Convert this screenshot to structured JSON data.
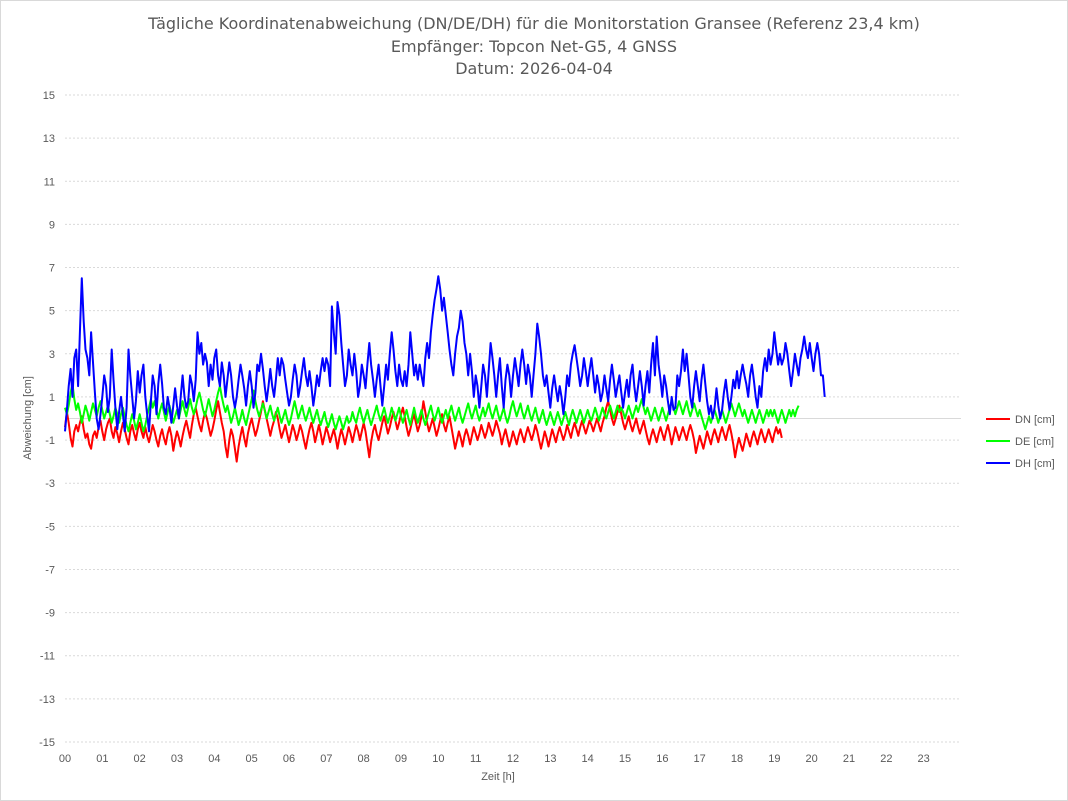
{
  "chart_data": {
    "type": "line",
    "title": [
      "Tägliche Koordinatenabweichung (DN/DE/DH) für die Monitorstation Gransee (Referenz 23,4 km)",
      "Empfänger: Topcon Net-G5, 4 GNSS",
      "Datum: 2026-04-04"
    ],
    "xlabel": "Zeit [h]",
    "ylabel": "Abweichung [cm]",
    "xlim": [
      0,
      24
    ],
    "ylim": [
      -15,
      15
    ],
    "x_ticks": [
      "00",
      "01",
      "02",
      "03",
      "04",
      "05",
      "06",
      "07",
      "08",
      "09",
      "10",
      "11",
      "12",
      "13",
      "14",
      "15",
      "16",
      "17",
      "18",
      "19",
      "20",
      "21",
      "22",
      "23"
    ],
    "y_ticks": [
      15,
      13,
      11,
      9,
      7,
      5,
      3,
      1,
      -1,
      -3,
      -5,
      -7,
      -9,
      -11,
      -13,
      -15
    ],
    "grid": true,
    "legend_position": "right",
    "x_step_h": 0.05,
    "series": [
      {
        "name": "DN [cm]",
        "color": "#ff0000",
        "values": [
          -0.4,
          0.3,
          -0.2,
          -0.9,
          -1.3,
          -0.6,
          -0.3,
          -0.6,
          -0.2,
          0.1,
          -0.5,
          -0.9,
          -0.7,
          -1.2,
          -1.4,
          -0.8,
          -0.6,
          -0.9,
          -0.4,
          -0.1,
          -0.6,
          -1.0,
          -0.5,
          -0.2,
          0.0,
          -0.6,
          -0.9,
          -0.4,
          -0.7,
          -1.1,
          -0.6,
          -0.2,
          -0.5,
          -0.9,
          -1.2,
          -0.6,
          -0.3,
          -0.7,
          -1.0,
          -0.5,
          -0.2,
          -0.6,
          -0.9,
          -0.4,
          -0.8,
          -1.1,
          -0.7,
          -0.3,
          -0.6,
          -1.0,
          -1.3,
          -0.8,
          -0.5,
          -0.9,
          -1.2,
          -0.7,
          -0.4,
          -0.8,
          -1.5,
          -1.0,
          -0.6,
          -0.9,
          -1.3,
          -0.8,
          -0.4,
          -0.1,
          -0.5,
          -0.9,
          -0.3,
          0.2,
          0.5,
          0.1,
          -0.3,
          -0.6,
          -0.1,
          0.3,
          0.0,
          -0.4,
          -0.8,
          -0.5,
          -0.1,
          0.4,
          0.8,
          0.3,
          -0.2,
          -0.6,
          -1.3,
          -1.8,
          -1.0,
          -0.5,
          -0.8,
          -1.4,
          -2.0,
          -1.3,
          -0.8,
          -0.4,
          -0.9,
          -1.3,
          -0.7,
          -0.3,
          0.0,
          -0.4,
          -0.8,
          -0.5,
          -0.1,
          0.3,
          0.8,
          0.4,
          0.0,
          -0.4,
          -0.8,
          -0.4,
          -0.1,
          0.3,
          0.0,
          -0.5,
          -0.9,
          -0.6,
          -0.3,
          -0.7,
          -1.1,
          -0.7,
          -0.3,
          -0.6,
          -1.0,
          -0.7,
          -0.3,
          -0.6,
          -1.0,
          -1.4,
          -0.9,
          -0.5,
          -0.2,
          -0.6,
          -1.1,
          -0.7,
          -0.3,
          -0.7,
          -1.2,
          -0.8,
          -0.4,
          -0.7,
          -1.1,
          -0.8,
          -0.5,
          -0.9,
          -1.4,
          -0.9,
          -0.5,
          -0.8,
          -1.2,
          -0.8,
          -0.4,
          -0.7,
          -1.1,
          -0.7,
          -0.3,
          -0.6,
          -1.0,
          -0.6,
          -0.2,
          -0.6,
          -1.2,
          -1.8,
          -1.1,
          -0.6,
          -0.3,
          -0.7,
          -1.0,
          -0.6,
          -0.2,
          0.1,
          -0.3,
          -0.7,
          -0.4,
          0.0,
          0.3,
          -0.1,
          -0.5,
          -0.2,
          0.2,
          0.5,
          0.1,
          -0.4,
          -0.8,
          -0.5,
          -0.1,
          0.2,
          -0.2,
          -0.6,
          -0.3,
          0.1,
          0.8,
          0.3,
          -0.2,
          -0.6,
          -0.3,
          0.0,
          -0.4,
          -0.8,
          -0.5,
          -0.1,
          0.2,
          -0.3,
          -0.6,
          -0.2,
          0.1,
          -0.4,
          -0.9,
          -1.4,
          -1.0,
          -0.6,
          -0.9,
          -1.3,
          -0.8,
          -0.5,
          -0.8,
          -1.2,
          -0.8,
          -0.4,
          -0.7,
          -1.0,
          -0.7,
          -0.3,
          -0.6,
          -0.9,
          -0.6,
          -0.2,
          -0.5,
          -0.8,
          -0.5,
          -0.1,
          -0.4,
          -0.7,
          -1.2,
          -0.8,
          -0.5,
          -0.9,
          -1.3,
          -1.0,
          -0.6,
          -0.9,
          -1.2,
          -0.8,
          -0.5,
          -0.8,
          -1.1,
          -0.7,
          -0.4,
          -0.7,
          -1.0,
          -0.7,
          -0.3,
          -0.6,
          -1.0,
          -1.4,
          -1.0,
          -0.6,
          -0.9,
          -1.3,
          -0.9,
          -0.5,
          -0.8,
          -1.1,
          -0.7,
          -0.4,
          -0.7,
          -1.0,
          -0.7,
          -0.3,
          -0.6,
          -0.9,
          -0.5,
          -0.2,
          -0.5,
          -0.8,
          -0.4,
          -0.1,
          -0.4,
          -0.7,
          -0.4,
          -0.1,
          -0.3,
          -0.6,
          -0.3,
          0.0,
          -0.3,
          -0.6,
          -0.2,
          0.1,
          0.5,
          0.8,
          0.4,
          0.0,
          -0.3,
          0.0,
          0.3,
          0.6,
          0.2,
          -0.2,
          -0.5,
          -0.2,
          0.1,
          -0.3,
          -0.6,
          -0.3,
          0.0,
          -0.4,
          -0.7,
          -0.4,
          -0.1,
          -0.5,
          -0.9,
          -1.2,
          -0.8,
          -0.5,
          -0.8,
          -1.1,
          -0.7,
          -0.4,
          -0.7,
          -1.0,
          -0.6,
          -0.3,
          -0.7,
          -1.2,
          -0.8,
          -0.4,
          -0.7,
          -1.0,
          -0.7,
          -0.4,
          -0.7,
          -1.0,
          -0.6,
          -0.3,
          -0.6,
          -1.0,
          -1.6,
          -1.2,
          -0.8,
          -1.1,
          -1.4,
          -1.0,
          -0.6,
          -0.9,
          -1.2,
          -0.8,
          -0.5,
          -0.8,
          -1.1,
          -0.7,
          -0.4,
          -0.7,
          -1.0,
          -0.6,
          -0.3,
          -0.7,
          -1.2,
          -1.8,
          -1.3,
          -0.9,
          -1.2,
          -1.5,
          -1.1,
          -0.7,
          -1.0,
          -1.3,
          -0.9,
          -0.6,
          -0.9,
          -1.2,
          -0.8,
          -0.5,
          -0.8,
          -1.1,
          -0.8,
          -0.5,
          -0.8,
          -1.1,
          -0.7,
          -0.4,
          -0.7,
          -0.5,
          -0.9
        ],
        "annotations": []
      },
      {
        "name": "DE [cm]",
        "color": "#00ff00",
        "values": [
          0.5,
          0.2,
          0.6,
          1.2,
          1.6,
          0.9,
          0.4,
          0.7,
          0.3,
          -0.2,
          0.2,
          0.6,
          0.3,
          -0.1,
          0.3,
          0.7,
          0.4,
          0.1,
          0.5,
          0.8,
          0.4,
          0.0,
          0.3,
          0.6,
          0.2,
          -0.2,
          0.1,
          0.5,
          0.2,
          -0.2,
          0.2,
          0.5,
          0.1,
          -0.3,
          -0.6,
          -0.2,
          0.2,
          -0.1,
          -0.5,
          -0.2,
          0.2,
          -0.2,
          -0.6,
          -0.3,
          0.1,
          0.5,
          0.9,
          0.5,
          0.8,
          0.4,
          0.0,
          0.4,
          0.7,
          0.3,
          -0.1,
          0.3,
          0.6,
          0.2,
          -0.2,
          0.1,
          0.4,
          0.0,
          0.4,
          0.8,
          0.4,
          0.1,
          0.5,
          0.9,
          0.5,
          0.2,
          0.5,
          0.9,
          1.2,
          0.8,
          0.4,
          0.1,
          0.5,
          0.9,
          0.5,
          0.1,
          0.4,
          0.8,
          1.2,
          1.5,
          1.0,
          0.6,
          0.3,
          0.6,
          0.2,
          -0.2,
          0.1,
          0.5,
          0.1,
          -0.3,
          0.0,
          0.4,
          0.0,
          -0.3,
          0.1,
          0.5,
          0.9,
          1.3,
          0.8,
          0.4,
          0.1,
          0.4,
          0.7,
          0.4,
          0.0,
          0.3,
          0.6,
          0.2,
          -0.1,
          0.2,
          0.5,
          0.1,
          -0.2,
          0.1,
          0.4,
          0.0,
          -0.3,
          0.0,
          0.4,
          0.8,
          0.4,
          0.0,
          0.3,
          0.6,
          0.2,
          -0.1,
          0.2,
          0.5,
          0.1,
          -0.2,
          0.1,
          0.4,
          0.0,
          -0.3,
          0.0,
          0.3,
          -0.1,
          -0.4,
          -0.1,
          0.2,
          -0.2,
          -0.5,
          -0.2,
          0.1,
          -0.2,
          -0.5,
          -0.2,
          0.1,
          -0.2,
          -0.1,
          0.3,
          0.0,
          -0.2,
          0.2,
          0.5,
          0.1,
          -0.2,
          0.1,
          0.4,
          0.0,
          -0.3,
          0.0,
          0.3,
          0.6,
          0.2,
          -0.1,
          0.2,
          0.5,
          0.1,
          -0.2,
          0.1,
          0.5,
          0.2,
          -0.1,
          0.2,
          0.5,
          0.1,
          -0.2,
          0.1,
          0.4,
          0.0,
          -0.3,
          0.1,
          0.5,
          0.1,
          -0.2,
          0.1,
          0.4,
          0.0,
          -0.3,
          0.0,
          0.3,
          0.6,
          0.2,
          -0.1,
          0.2,
          0.5,
          0.1,
          -0.2,
          0.1,
          0.4,
          0.0,
          0.3,
          0.6,
          0.2,
          -0.1,
          0.2,
          0.5,
          0.1,
          -0.2,
          0.1,
          0.4,
          0.7,
          0.3,
          0.0,
          0.3,
          0.6,
          0.2,
          -0.1,
          0.2,
          0.5,
          0.1,
          0.4,
          0.7,
          0.3,
          0.0,
          0.3,
          0.6,
          0.2,
          -0.1,
          0.2,
          0.5,
          0.1,
          -0.2,
          0.1,
          0.5,
          0.8,
          0.4,
          0.1,
          0.4,
          0.7,
          0.3,
          0.0,
          0.3,
          0.6,
          0.2,
          -0.1,
          0.2,
          0.5,
          0.1,
          -0.2,
          0.1,
          0.4,
          0.0,
          -0.3,
          0.0,
          0.3,
          0.0,
          -0.3,
          0.0,
          0.3,
          0.0,
          -0.3,
          0.0,
          0.3,
          0.0,
          -0.3,
          0.1,
          0.4,
          0.1,
          -0.2,
          0.1,
          0.4,
          0.1,
          -0.2,
          0.1,
          0.4,
          0.1,
          -0.1,
          0.2,
          0.5,
          0.2,
          -0.1,
          0.2,
          0.5,
          0.2,
          0.0,
          0.3,
          0.6,
          0.3,
          0.0,
          0.3,
          0.6,
          0.3,
          0.5,
          0.3,
          0.0,
          0.3,
          0.6,
          0.3,
          0.0,
          0.3,
          0.6,
          0.3,
          0.6,
          0.9,
          0.5,
          0.2,
          0.5,
          0.2,
          -0.1,
          0.2,
          0.5,
          0.2,
          -0.1,
          0.2,
          0.5,
          0.2,
          -0.1,
          0.2,
          0.5,
          0.8,
          0.5,
          0.2,
          0.5,
          0.8,
          0.5,
          0.2,
          0.5,
          0.8,
          0.4,
          0.1,
          0.4,
          0.7,
          0.4,
          0.1,
          0.4,
          0.1,
          -0.2,
          -0.5,
          -0.2,
          0.1,
          -0.2,
          0.1,
          0.4,
          0.1,
          -0.2,
          0.1,
          0.4,
          0.1,
          -0.2,
          0.1,
          0.4,
          0.7,
          0.4,
          0.1,
          0.4,
          0.7,
          0.4,
          0.1,
          0.4,
          0.1,
          -0.2,
          0.1,
          0.4,
          0.1,
          -0.2,
          0.1,
          0.4,
          0.1,
          -0.2,
          0.1,
          0.4,
          0.1,
          0.4,
          0.1,
          0.4,
          0.1,
          -0.2,
          0.1,
          0.4,
          0.1,
          -0.2,
          0.1,
          0.4,
          0.1,
          0.4,
          0.1,
          0.4,
          0.6
        ],
        "annotations": []
      },
      {
        "name": "DH [cm]",
        "color": "#0000ff",
        "values": [
          -0.6,
          0.4,
          1.5,
          2.3,
          1.0,
          2.8,
          3.2,
          1.5,
          4.0,
          6.5,
          4.5,
          3.2,
          2.8,
          2.0,
          4.0,
          2.6,
          1.2,
          0.0,
          -0.5,
          0.2,
          1.0,
          2.0,
          1.5,
          0.3,
          1.0,
          3.2,
          1.8,
          0.5,
          -0.5,
          0.3,
          1.0,
          0.2,
          -0.6,
          0.5,
          3.2,
          2.0,
          1.0,
          0.0,
          0.8,
          2.2,
          1.2,
          2.0,
          2.5,
          1.0,
          0.2,
          -0.6,
          0.8,
          2.0,
          1.5,
          0.2,
          1.6,
          2.5,
          1.6,
          0.5,
          0.2,
          1.0,
          0.5,
          -0.2,
          0.6,
          1.4,
          0.6,
          0.0,
          1.0,
          2.0,
          1.0,
          0.5,
          0.8,
          2.0,
          1.6,
          0.8,
          1.8,
          4.0,
          3.0,
          3.5,
          2.5,
          3.0,
          2.6,
          1.5,
          2.5,
          1.8,
          2.8,
          3.2,
          2.0,
          1.5,
          2.6,
          2.0,
          1.0,
          1.8,
          2.6,
          2.0,
          1.0,
          0.5,
          1.0,
          1.8,
          2.5,
          2.0,
          1.4,
          0.6,
          1.5,
          2.2,
          1.5,
          0.5,
          1.2,
          2.5,
          2.2,
          3.0,
          2.3,
          1.5,
          0.8,
          1.5,
          2.3,
          1.5,
          1.0,
          1.8,
          2.8,
          2.0,
          2.8,
          2.5,
          1.8,
          1.2,
          0.6,
          1.0,
          1.8,
          2.5,
          2.0,
          1.0,
          1.5,
          2.2,
          2.8,
          2.0,
          1.5,
          2.2,
          1.5,
          0.6,
          1.2,
          2.0,
          1.5,
          2.2,
          2.8,
          2.2,
          2.8,
          2.5,
          1.5,
          5.2,
          4.0,
          3.0,
          5.4,
          4.8,
          3.5,
          2.5,
          1.5,
          2.0,
          3.2,
          2.5,
          2.0,
          3.0,
          2.2,
          1.0,
          1.5,
          2.5,
          2.0,
          1.4,
          2.5,
          3.5,
          2.5,
          1.8,
          1.0,
          1.8,
          2.5,
          1.5,
          0.6,
          1.5,
          2.5,
          1.8,
          3.0,
          4.0,
          3.2,
          2.2,
          1.5,
          2.5,
          1.8,
          1.5,
          2.2,
          1.5,
          2.5,
          4.0,
          3.0,
          2.0,
          2.5,
          1.8,
          2.5,
          2.0,
          1.5,
          2.8,
          3.5,
          2.8,
          4.0,
          4.8,
          5.5,
          6.0,
          6.6,
          6.0,
          5.0,
          5.6,
          4.8,
          4.0,
          3.2,
          2.5,
          2.0,
          3.0,
          3.8,
          4.2,
          5.0,
          4.5,
          3.5,
          3.0,
          2.0,
          3.0,
          2.2,
          1.0,
          2.0,
          1.5,
          0.5,
          1.5,
          2.5,
          2.0,
          1.0,
          2.2,
          3.5,
          2.8,
          2.0,
          1.0,
          2.0,
          2.8,
          1.5,
          0.5,
          1.8,
          2.5,
          2.0,
          1.0,
          2.0,
          2.8,
          2.2,
          1.5,
          2.5,
          3.2,
          2.5,
          1.6,
          2.5,
          2.0,
          1.0,
          2.0,
          3.0,
          4.4,
          3.8,
          3.0,
          2.0,
          1.5,
          2.0,
          1.2,
          0.5,
          1.4,
          2.0,
          1.4,
          0.8,
          1.5,
          1.0,
          0.2,
          1.0,
          2.0,
          1.5,
          2.5,
          3.0,
          3.4,
          2.8,
          2.2,
          1.5,
          2.0,
          2.8,
          2.2,
          1.5,
          2.2,
          2.8,
          2.0,
          1.2,
          2.0,
          1.5,
          0.8,
          1.2,
          2.0,
          1.4,
          0.8,
          1.8,
          2.5,
          1.8,
          1.0,
          1.5,
          2.0,
          1.2,
          0.5,
          1.2,
          1.8,
          1.0,
          2.0,
          2.5,
          1.5,
          0.8,
          1.5,
          2.2,
          1.5,
          0.6,
          1.5,
          2.2,
          1.2,
          2.5,
          3.5,
          2.0,
          3.8,
          2.5,
          1.8,
          1.0,
          2.0,
          1.5,
          0.8,
          0.2,
          1.0,
          0.4,
          0.5,
          2.0,
          1.5,
          2.2,
          3.2,
          2.2,
          3.0,
          2.0,
          1.0,
          0.5,
          1.5,
          2.2,
          1.5,
          0.8,
          1.8,
          2.5,
          1.6,
          0.8,
          0.2,
          0.6,
          0.0,
          0.5,
          1.4,
          0.6,
          0.0,
          0.4,
          1.2,
          1.8,
          1.0,
          0.4,
          1.0,
          1.8,
          1.4,
          2.2,
          1.4,
          2.0,
          2.5,
          2.0,
          1.6,
          1.0,
          2.0,
          2.5,
          1.8,
          1.0,
          0.5,
          1.5,
          1.0,
          2.2,
          2.8,
          2.2,
          3.2,
          2.5,
          3.0,
          4.0,
          3.2,
          2.5,
          3.0,
          2.5,
          2.8,
          3.5,
          3.0,
          2.2,
          1.5,
          2.2,
          3.0,
          2.5,
          2.0,
          2.8,
          3.2,
          3.8,
          3.2,
          2.8,
          3.5,
          2.8,
          2.2,
          3.0,
          3.5,
          3.0,
          2.0,
          2.0,
          1.0
        ]
      }
    ]
  }
}
